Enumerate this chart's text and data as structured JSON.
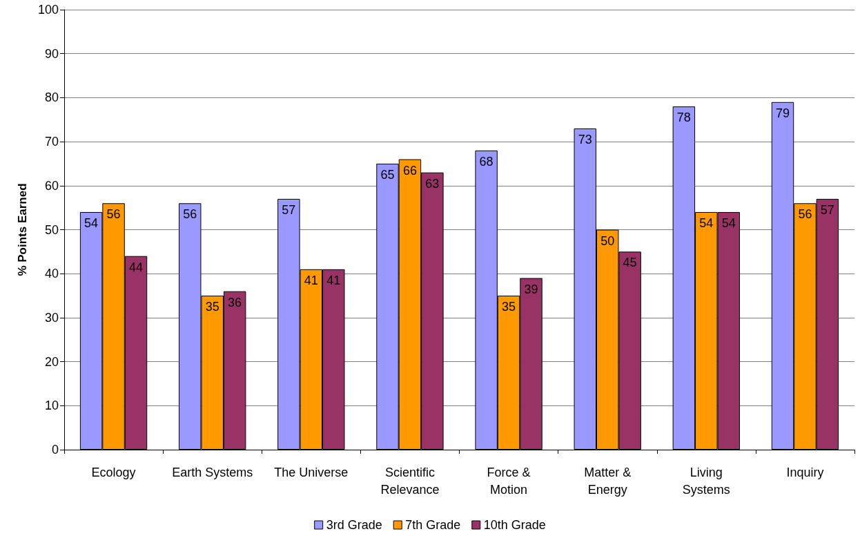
{
  "chart_data": {
    "type": "bar",
    "ylabel": "% Points Earned",
    "categories": [
      "Ecology",
      "Earth Systems",
      "The Universe",
      "Scientific\nRelevance",
      "Force &\nMotion",
      "Matter &\nEnergy",
      "Living\nSystems",
      "Inquiry"
    ],
    "series": [
      {
        "name": "3rd Grade",
        "color": "#9999ff",
        "values": [
          54,
          56,
          57,
          65,
          68,
          73,
          78,
          79
        ]
      },
      {
        "name": "7th Grade",
        "color": "#ff9900",
        "values": [
          56,
          35,
          41,
          66,
          35,
          50,
          54,
          56
        ]
      },
      {
        "name": "10th Grade",
        "color": "#993366",
        "values": [
          44,
          36,
          41,
          63,
          39,
          45,
          54,
          57
        ]
      }
    ],
    "ylim": [
      0,
      100
    ],
    "yticks": [
      0,
      10,
      20,
      30,
      40,
      50,
      60,
      70,
      80,
      90,
      100
    ],
    "grid": "y",
    "legend": "bottom",
    "data_labels": true
  }
}
